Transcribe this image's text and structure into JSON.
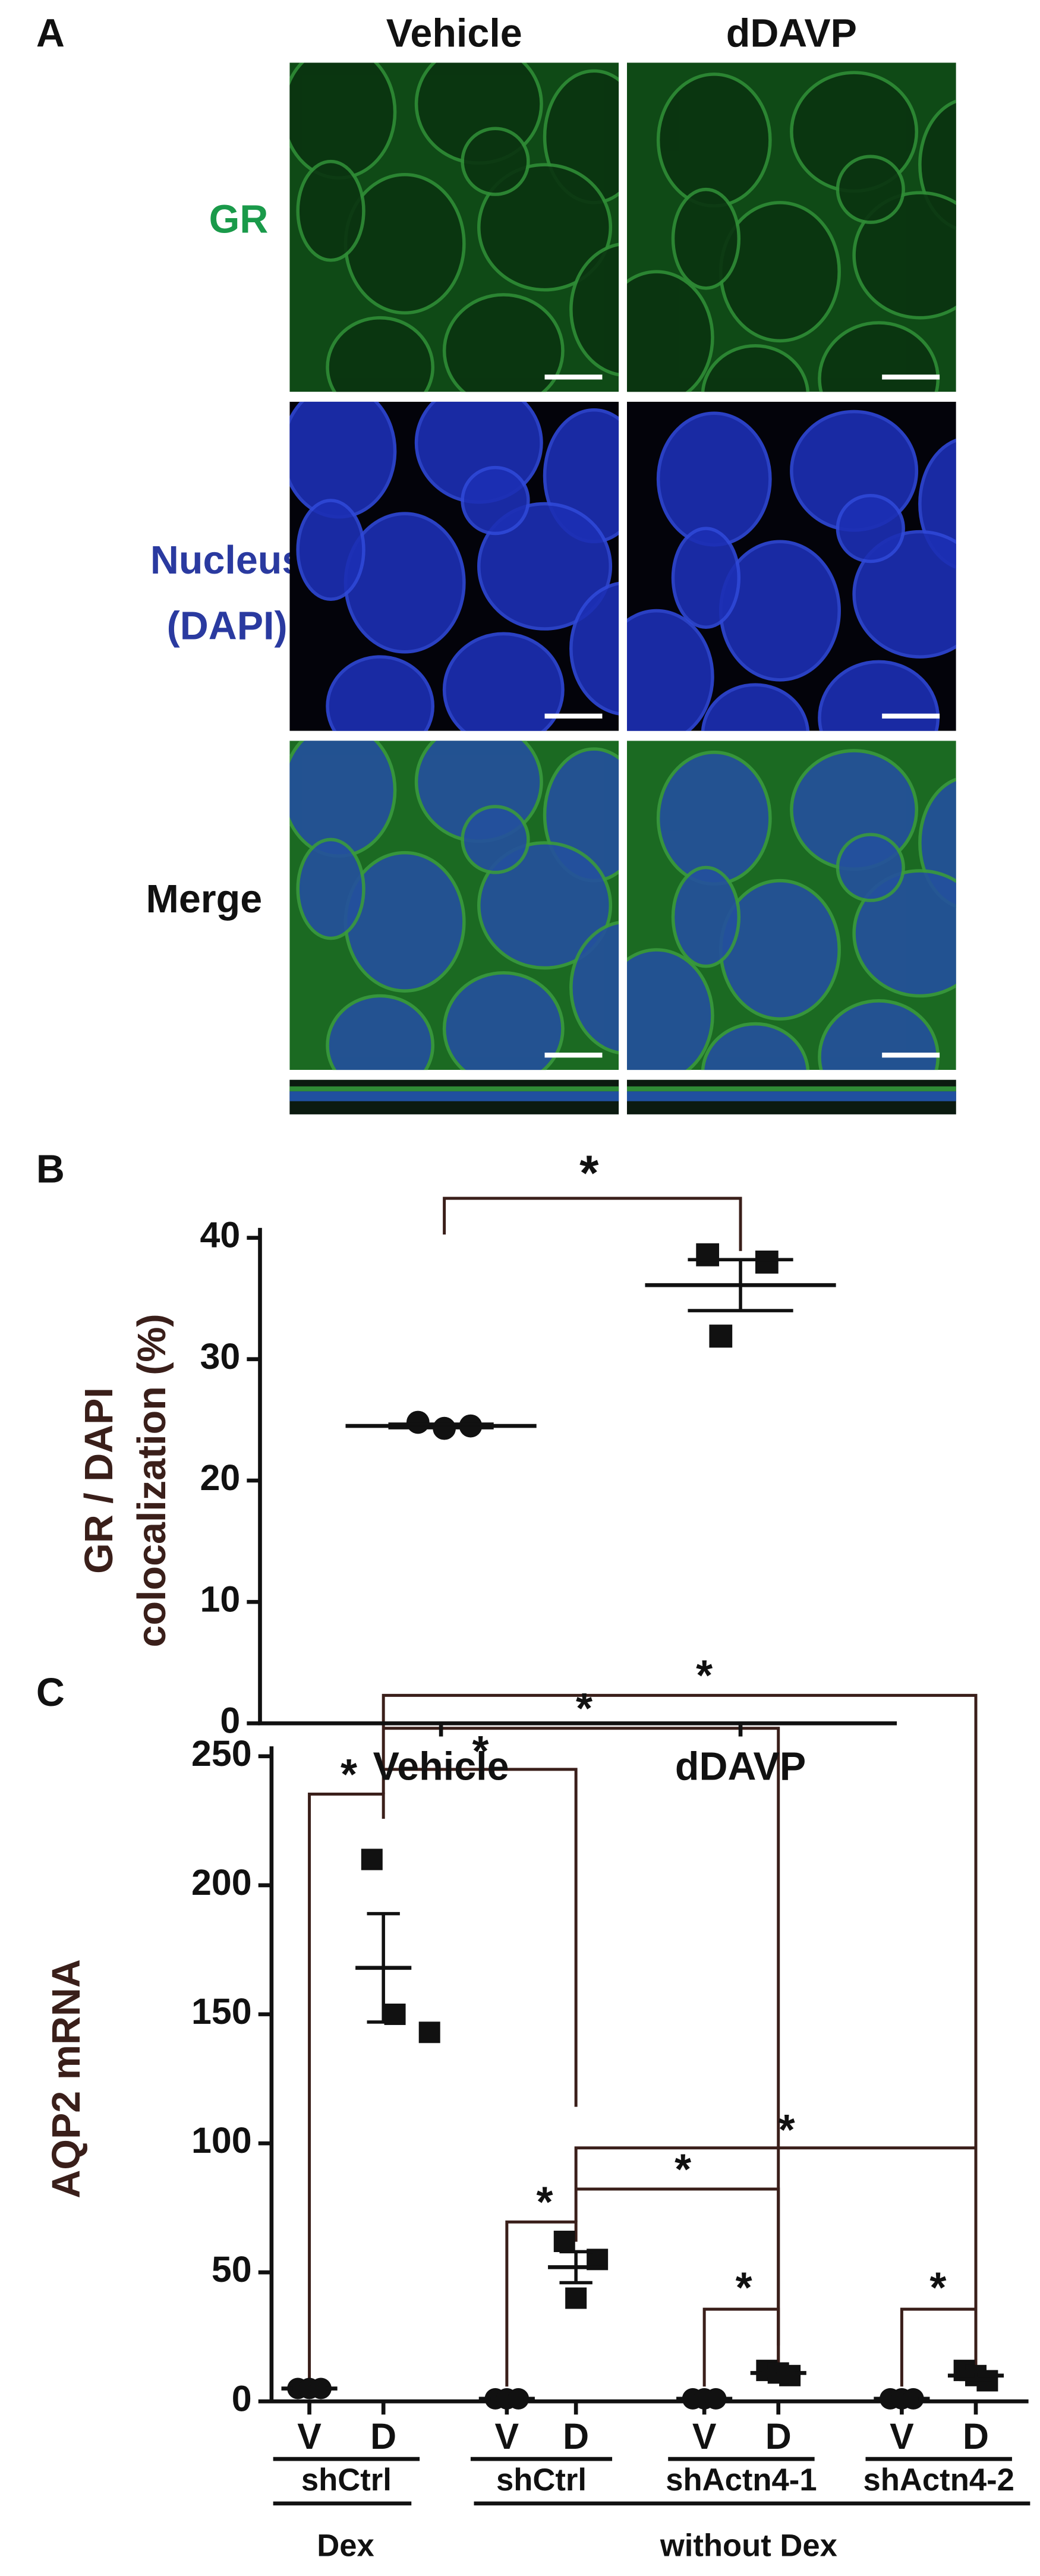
{
  "panel_a": {
    "label": "A",
    "columns": [
      "Vehicle",
      "dDAVP"
    ],
    "rows": [
      "GR",
      "Nucleus",
      "(DAPI)",
      "Merge"
    ]
  },
  "chart_data": [
    {
      "type": "scatter",
      "label": "B",
      "ylabel": [
        "GR / DAPI",
        "colocalization (%)"
      ],
      "categories": [
        "Vehicle",
        "dDAVP"
      ],
      "markers": [
        "circle",
        "square"
      ],
      "color": "#111111",
      "points": [
        [
          24.8,
          24.3,
          24.5
        ],
        [
          38.6,
          38.0,
          31.9
        ]
      ],
      "mean": [
        24.5,
        36.1
      ],
      "sem": [
        0.15,
        2.1
      ],
      "ylim": [
        0,
        40
      ],
      "yticks": [
        0,
        10,
        20,
        30,
        40
      ],
      "annotations": [
        "*"
      ]
    },
    {
      "type": "scatter",
      "label": "C",
      "ylabel": [
        "AQP2 mRNA"
      ],
      "categories": [
        "V",
        "D",
        "V",
        "D",
        "V",
        "D",
        "V",
        "D"
      ],
      "markers": [
        "circle",
        "square",
        "circle",
        "square",
        "circle",
        "square",
        "circle",
        "square"
      ],
      "color": "#111111",
      "points": [
        [
          5,
          5,
          5
        ],
        [
          210,
          143,
          150
        ],
        [
          1,
          1,
          1
        ],
        [
          62,
          55,
          40
        ],
        [
          1,
          1,
          1
        ],
        [
          12,
          10,
          11
        ],
        [
          1,
          1,
          1
        ],
        [
          12,
          8,
          10
        ]
      ],
      "mean": [
        5,
        168,
        1,
        52,
        1,
        11,
        1,
        10
      ],
      "sem": [
        0.3,
        21,
        0.2,
        6,
        0.2,
        1,
        0.2,
        1.5
      ],
      "ylim": [
        0,
        250
      ],
      "yticks": [
        0,
        50,
        100,
        150,
        200,
        250
      ],
      "groups": [
        "shCtrl",
        "shCtrl",
        "shActn4-1",
        "shActn4-2"
      ],
      "conditions": [
        "Dex",
        "without Dex"
      ],
      "annotations": [
        "*",
        "*",
        "*",
        "*",
        "*",
        "*",
        "*",
        "*",
        "*"
      ]
    }
  ]
}
